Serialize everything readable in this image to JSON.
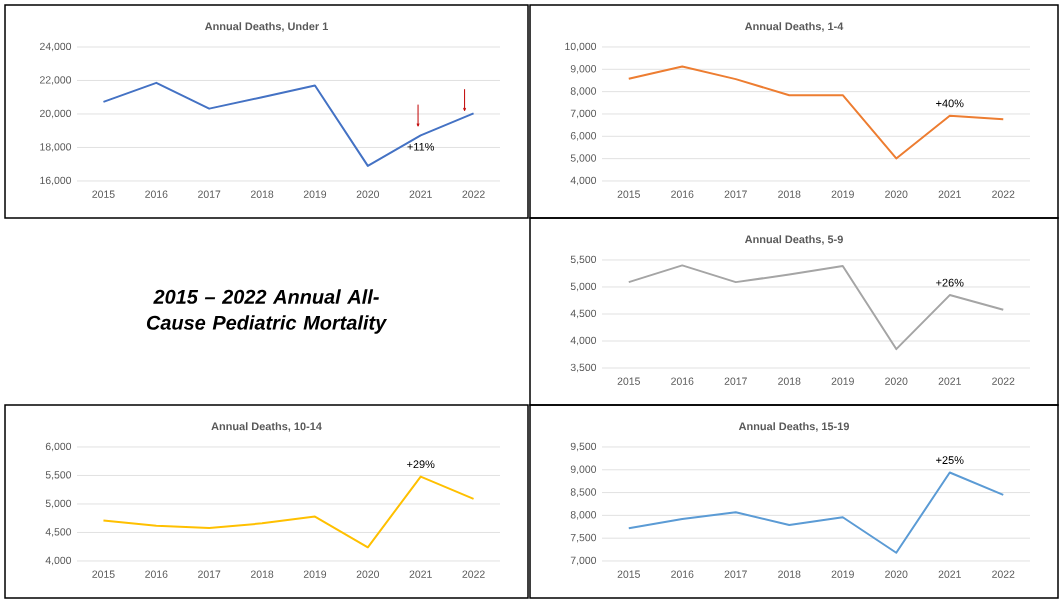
{
  "chart_data": [
    {
      "type": "line",
      "title": "Annual Deaths, Under 1",
      "categories": [
        "2015",
        "2016",
        "2017",
        "2018",
        "2019",
        "2020",
        "2021",
        "2022"
      ],
      "values": [
        20720,
        21860,
        20320,
        21000,
        21700,
        16900,
        18720,
        20040
      ],
      "color": "#4472c4",
      "ylim": [
        16000,
        24000
      ],
      "yticks": [
        {
          "value": 16000,
          "label": "16,000"
        },
        {
          "value": 18000,
          "label": "18,000"
        },
        {
          "value": 20000,
          "label": "20,000"
        },
        {
          "value": 22000,
          "label": "22,000"
        },
        {
          "value": 24000,
          "label": "24,000"
        }
      ],
      "grid": "y",
      "annotations": [
        {
          "text": "+11%",
          "x": "2021",
          "y": 18720
        }
      ]
    },
    {
      "type": "line",
      "title": "Annual Deaths, 1-4",
      "categories": [
        "2015",
        "2016",
        "2017",
        "2018",
        "2019",
        "2020",
        "2021",
        "2022"
      ],
      "values": [
        8580,
        9130,
        8560,
        7840,
        7840,
        5010,
        6920,
        6760
      ],
      "color": "#ed7d31",
      "ylim": [
        4000,
        10000
      ],
      "yticks": [
        {
          "value": 4000,
          "label": "4,000"
        },
        {
          "value": 5000,
          "label": "5,000"
        },
        {
          "value": 6000,
          "label": "6,000"
        },
        {
          "value": 7000,
          "label": "7,000"
        },
        {
          "value": 8000,
          "label": "8,000"
        },
        {
          "value": 9000,
          "label": "9,000"
        },
        {
          "value": 10000,
          "label": "10,000"
        }
      ],
      "grid": "y",
      "annotations": [
        {
          "text": "+40%",
          "x": "2021",
          "y": 6920
        }
      ]
    },
    {
      "type": "other",
      "title": "*2015 – 2022 Annual All-Cause Pediatric Mortality*"
    },
    {
      "type": "line",
      "title": "Annual Deaths, 5-9",
      "categories": [
        "2015",
        "2016",
        "2017",
        "2018",
        "2019",
        "2020",
        "2021",
        "2022"
      ],
      "values": [
        5090,
        5400,
        5090,
        5230,
        5390,
        3850,
        4850,
        4580
      ],
      "color": "#a5a5a5",
      "ylim": [
        3500,
        5500
      ],
      "yticks": [
        {
          "value": 3500,
          "label": "3,500"
        },
        {
          "value": 4000,
          "label": "4,000"
        },
        {
          "value": 4500,
          "label": "4,500"
        },
        {
          "value": 5000,
          "label": "5,000"
        },
        {
          "value": 5500,
          "label": "5,500"
        }
      ],
      "grid": "y",
      "annotations": [
        {
          "text": "+26%",
          "x": "2021",
          "y": 4850
        }
      ]
    },
    {
      "type": "line",
      "title": "Annual Deaths, 10-14",
      "categories": [
        "2015",
        "2016",
        "2017",
        "2018",
        "2019",
        "2020",
        "2021",
        "2022"
      ],
      "values": [
        4710,
        4620,
        4580,
        4660,
        4780,
        4240,
        5480,
        5090
      ],
      "color": "#ffc000",
      "ylim": [
        4000,
        6000
      ],
      "yticks": [
        {
          "value": 4000,
          "label": "4,000"
        },
        {
          "value": 4500,
          "label": "4,500"
        },
        {
          "value": 5000,
          "label": "5,000"
        },
        {
          "value": 5500,
          "label": "5,500"
        },
        {
          "value": 6000,
          "label": "6,000"
        }
      ],
      "grid": "y",
      "annotations": [
        {
          "text": "+29%",
          "x": "2021",
          "y": 5480
        }
      ]
    },
    {
      "type": "line",
      "title": "Annual Deaths, 15-19",
      "categories": [
        "2015",
        "2016",
        "2017",
        "2018",
        "2019",
        "2020",
        "2021",
        "2022"
      ],
      "values": [
        7720,
        7920,
        8070,
        7790,
        7960,
        7180,
        8940,
        8450
      ],
      "color": "#5b9bd5",
      "ylim": [
        7000,
        9500
      ],
      "yticks": [
        {
          "value": 7000,
          "label": "7,000"
        },
        {
          "value": 7500,
          "label": "7,500"
        },
        {
          "value": 8000,
          "label": "8,000"
        },
        {
          "value": 8500,
          "label": "8,500"
        },
        {
          "value": 9000,
          "label": "9,000"
        },
        {
          "value": 9500,
          "label": "9,500"
        }
      ],
      "grid": "y",
      "annotations": [
        {
          "text": "+25%",
          "x": "2021",
          "y": 8940
        }
      ]
    }
  ]
}
